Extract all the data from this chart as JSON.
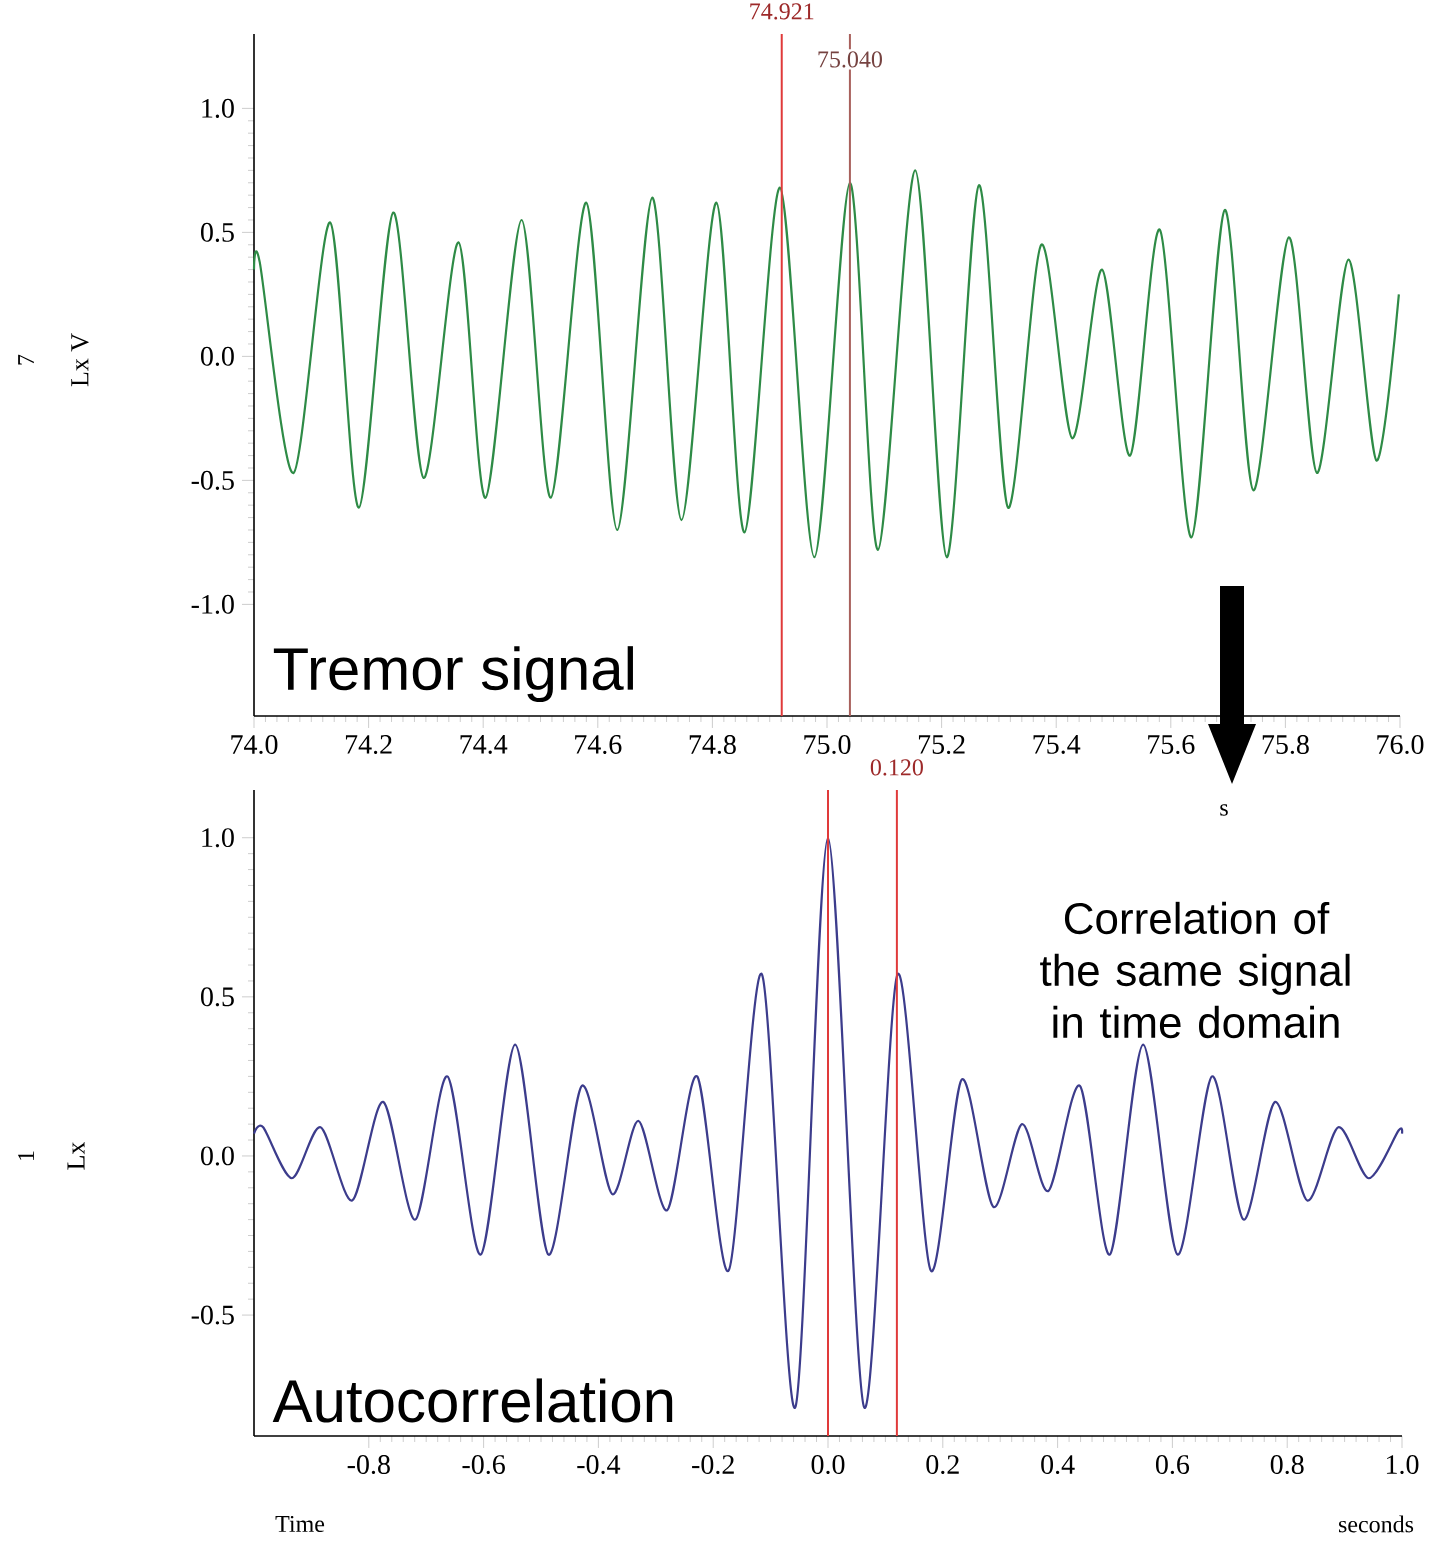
{
  "chart_data": [
    {
      "type": "line",
      "title": "Tremor signal",
      "xlabel": "s",
      "ylabel": "Lx V",
      "annotations": [
        "7"
      ],
      "xlim": [
        74.0,
        76.0
      ],
      "ylim": [
        -1.45,
        1.3
      ],
      "xticks": [
        {
          "value": 74.0,
          "label": "74.0"
        },
        74.2,
        74.4,
        74.6,
        74.8,
        {
          "value": 75.0,
          "label": "75.0"
        },
        75.2,
        75.4,
        75.6,
        75.8,
        {
          "value": 76.0,
          "label": "76.0"
        }
      ],
      "yticks": [
        {
          "value": -1.0,
          "label": "-1.0"
        },
        {
          "value": -0.5,
          "label": "-0.5"
        },
        {
          "value": 0.0,
          "label": "0.0"
        },
        {
          "value": 0.5,
          "label": "0.5"
        },
        {
          "value": 1.0,
          "label": "1.0"
        }
      ],
      "ref_lines": [
        {
          "axis": "x",
          "value": 74.921,
          "label": "74.921",
          "color": "#e03a3a"
        },
        {
          "axis": "x",
          "value": 75.04,
          "label": "75.040",
          "color": "#a8605c"
        }
      ],
      "series": [
        {
          "color": "#2e8b46",
          "x": [
            74.0,
            74.01,
            74.069,
            74.133,
            74.183,
            74.243,
            74.296,
            74.357,
            74.404,
            74.467,
            74.518,
            74.58,
            74.634,
            74.695,
            74.746,
            74.807,
            74.856,
            74.918,
            74.978,
            75.04,
            75.089,
            75.154,
            75.209,
            75.265,
            75.316,
            75.374,
            75.428,
            75.48,
            75.529,
            75.581,
            75.636,
            75.694,
            75.744,
            75.806,
            75.855,
            75.91,
            75.959,
            75.998
          ],
          "values": [
            0.35,
            0.38,
            -0.47,
            0.54,
            -0.61,
            0.58,
            -0.49,
            0.46,
            -0.57,
            0.55,
            -0.57,
            0.62,
            -0.7,
            0.64,
            -0.66,
            0.62,
            -0.71,
            0.68,
            -0.81,
            0.7,
            -0.78,
            0.75,
            -0.81,
            0.69,
            -0.61,
            0.45,
            -0.33,
            0.35,
            -0.4,
            0.51,
            -0.73,
            0.59,
            -0.54,
            0.48,
            -0.47,
            0.39,
            -0.42,
            0.25
          ]
        }
      ]
    },
    {
      "type": "line",
      "title": "Autocorrelation",
      "xlabel": "seconds",
      "ylabel": "Lx",
      "annotations": [
        "Correlation of the same signal in time domain",
        "Time",
        "1"
      ],
      "xlim": [
        -1.0,
        1.0
      ],
      "ylim": [
        -0.88,
        1.15
      ],
      "xticks": [
        -0.8,
        -0.6,
        -0.4,
        -0.2,
        {
          "value": 0.0,
          "label": "0.0"
        },
        0.2,
        0.4,
        0.6,
        0.8,
        {
          "value": 1.0,
          "label": "1.0"
        }
      ],
      "yticks": [
        {
          "value": -0.5,
          "label": "-0.5"
        },
        {
          "value": 0.0,
          "label": "0.0"
        },
        {
          "value": 0.5,
          "label": "0.5"
        },
        {
          "value": 1.0,
          "label": "1.0"
        }
      ],
      "ref_lines": [
        {
          "axis": "x",
          "value": 0.0,
          "color": "#e03a3a"
        },
        {
          "axis": "x",
          "value": 0.12,
          "label": "0.120",
          "color": "#e03a3a"
        }
      ],
      "series": [
        {
          "color": "#3c3c8c",
          "x": [
            -1.0,
            -0.984,
            -0.934,
            -0.884,
            -0.829,
            -0.775,
            -0.719,
            -0.663,
            -0.605,
            -0.545,
            -0.487,
            -0.429,
            -0.376,
            -0.33,
            -0.28,
            -0.228,
            -0.173,
            -0.115,
            -0.057,
            0.0,
            0.063,
            0.121,
            0.179,
            0.233,
            0.288,
            0.338,
            0.384,
            0.439,
            0.491,
            0.549,
            0.609,
            0.669,
            0.724,
            0.779,
            0.835,
            0.889,
            0.942,
            0.994,
            1.0
          ],
          "values": [
            0.07,
            0.09,
            -0.07,
            0.09,
            -0.14,
            0.17,
            -0.2,
            0.25,
            -0.31,
            0.35,
            -0.31,
            0.22,
            -0.12,
            0.11,
            -0.17,
            0.25,
            -0.36,
            0.57,
            -0.79,
            1.0,
            -0.79,
            0.57,
            -0.36,
            0.24,
            -0.16,
            0.1,
            -0.11,
            0.22,
            -0.31,
            0.35,
            -0.31,
            0.25,
            -0.2,
            0.17,
            -0.14,
            0.09,
            -0.07,
            0.08,
            0.07
          ]
        }
      ]
    }
  ]
}
